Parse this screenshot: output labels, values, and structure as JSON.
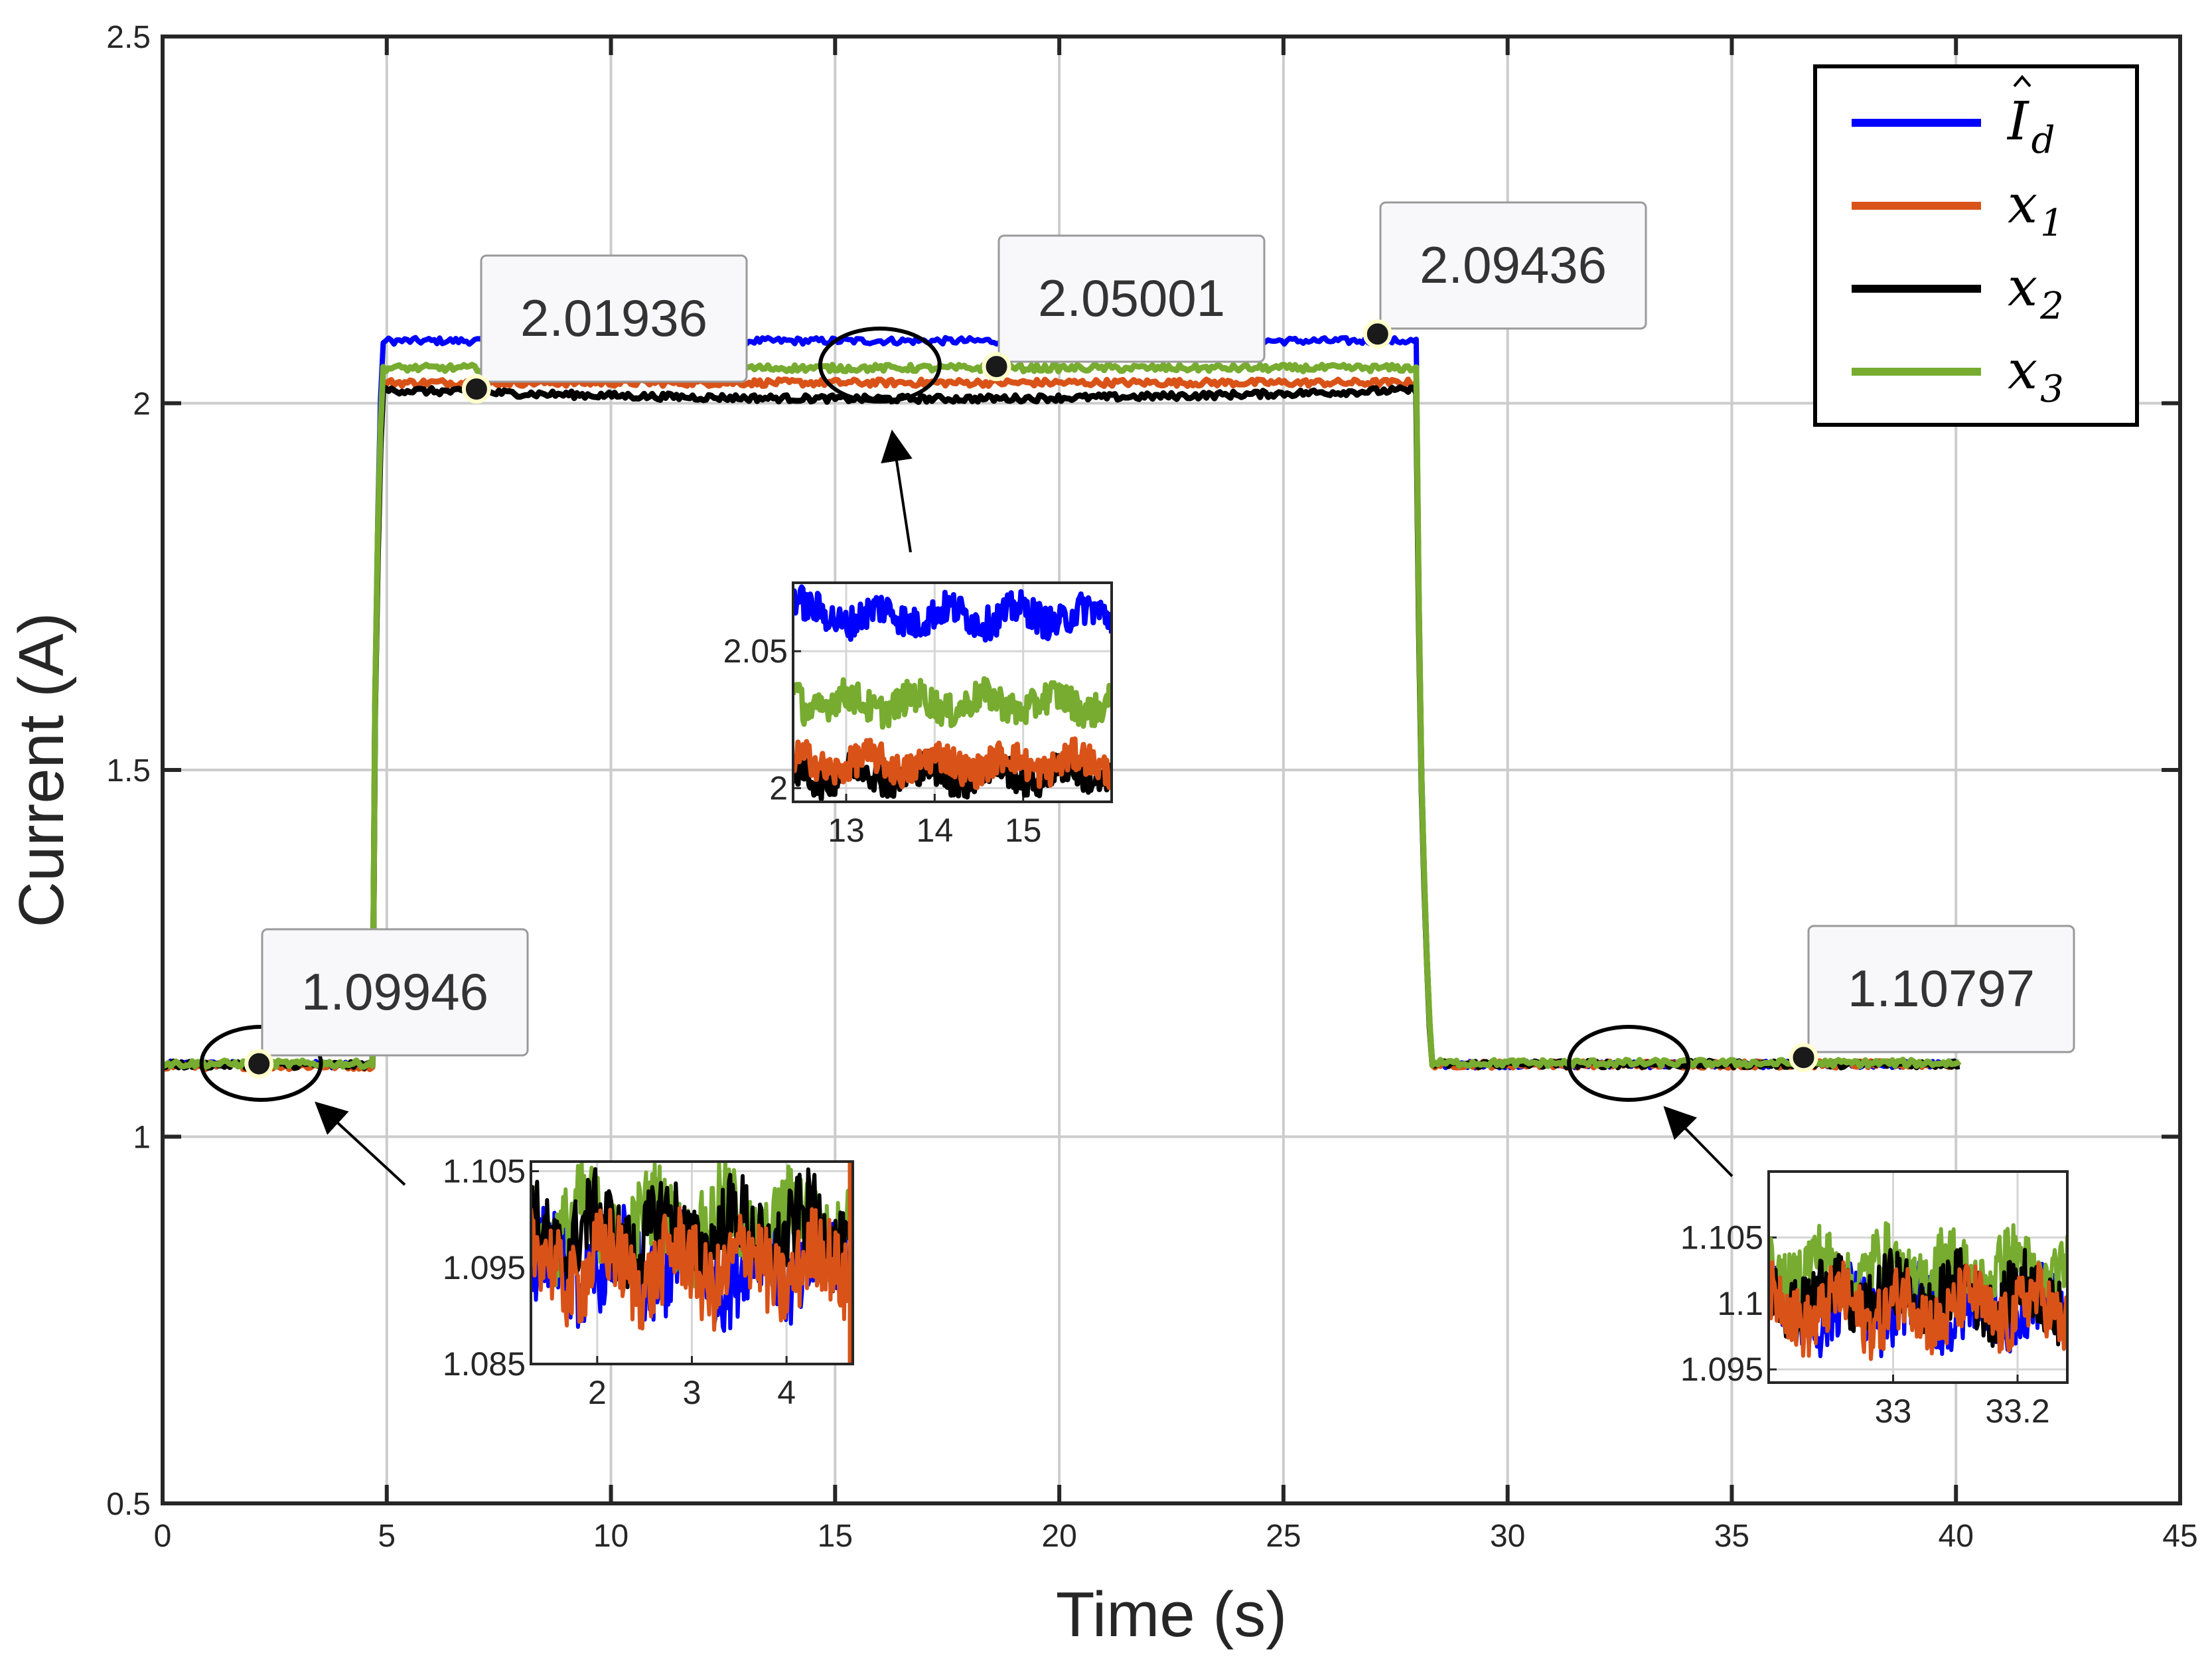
{
  "chart_data": {
    "type": "line",
    "title": "",
    "xlabel": "Time (s)",
    "ylabel": "Current (A)",
    "xlim": [
      0,
      45
    ],
    "ylim": [
      0.5,
      2.5
    ],
    "xticks": [
      0,
      5,
      10,
      15,
      20,
      25,
      30,
      35,
      40,
      45
    ],
    "yticks": [
      0.5,
      1,
      1.5,
      2,
      2.5
    ],
    "xtick_labels": [
      "0",
      "5",
      "10",
      "15",
      "20",
      "25",
      "30",
      "35",
      "40",
      "45"
    ],
    "ytick_labels": [
      "0.5",
      "1",
      "1.5",
      "2",
      "2.5"
    ],
    "grid": true,
    "legend_position": "top-right",
    "series": [
      {
        "name": "Î_d",
        "label_main": "I",
        "label_sub": "d",
        "hat": true,
        "color": "#0000ff",
        "levels": [
          [
            0,
            4.7,
            1.0985
          ],
          [
            4.9,
            28.0,
            2.085
          ],
          [
            28.3,
            40.1,
            1.0985
          ]
        ]
      },
      {
        "name": "x_1",
        "label_main": "x",
        "label_sub": "1",
        "hat": false,
        "color": "#d95319",
        "levels": [
          [
            0,
            4.7,
            1.0965
          ],
          [
            4.9,
            28.0,
            2.028
          ],
          [
            28.3,
            40.1,
            1.0985
          ]
        ]
      },
      {
        "name": "x_2",
        "label_main": "x",
        "label_sub": "2",
        "hat": false,
        "color": "#000000",
        "levels": [
          [
            0,
            4.7,
            1.098
          ],
          [
            4.9,
            28.0,
            2.018
          ],
          [
            28.3,
            40.1,
            1.099
          ]
        ]
      },
      {
        "name": "x_3",
        "label_main": "x",
        "label_sub": "3",
        "hat": false,
        "color": "#77ac30",
        "levels": [
          [
            0,
            4.7,
            1.0995
          ],
          [
            4.9,
            28.0,
            2.048
          ],
          [
            28.3,
            40.1,
            1.1005
          ]
        ]
      }
    ],
    "datatips": [
      {
        "x": 2.15,
        "y": 1.09946,
        "label": "1.09946"
      },
      {
        "x": 7.0,
        "y": 2.01936,
        "label": "2.01936"
      },
      {
        "x": 18.6,
        "y": 2.05001,
        "label": "2.05001"
      },
      {
        "x": 27.1,
        "y": 2.09436,
        "label": "2.09436"
      },
      {
        "x": 36.6,
        "y": 1.10797,
        "label": "1.10797"
      }
    ],
    "insets": [
      {
        "xlim": [
          1.3,
          4.7
        ],
        "ylim": [
          1.085,
          1.106
        ],
        "xticks": [
          2,
          3,
          4
        ],
        "xtick_labels": [
          "2",
          "3",
          "4"
        ],
        "yticks": [
          1.085,
          1.095,
          1.105
        ],
        "ytick_labels": [
          "1.085",
          "1.095",
          "1.105"
        ]
      },
      {
        "xlim": [
          12.4,
          16.0
        ],
        "ylim": [
          1.995,
          2.075
        ],
        "xticks": [
          13,
          14,
          15
        ],
        "xtick_labels": [
          "13",
          "14",
          "15"
        ],
        "yticks": [
          2.0,
          2.05
        ],
        "ytick_labels": [
          "2",
          "2.05"
        ]
      },
      {
        "xlim": [
          32.8,
          33.28
        ],
        "ylim": [
          1.094,
          1.11
        ],
        "xticks": [
          33,
          33.2
        ],
        "xtick_labels": [
          "33",
          "33.2"
        ],
        "yticks": [
          1.095,
          1.1,
          1.105
        ],
        "ytick_labels": [
          "1.095",
          "1.1",
          "1.105"
        ]
      }
    ],
    "zoom_regions": [
      {
        "x": 2.2,
        "y": 1.1
      },
      {
        "x": 16.0,
        "y": 2.052
      },
      {
        "x": 32.7,
        "y": 1.1
      }
    ]
  }
}
